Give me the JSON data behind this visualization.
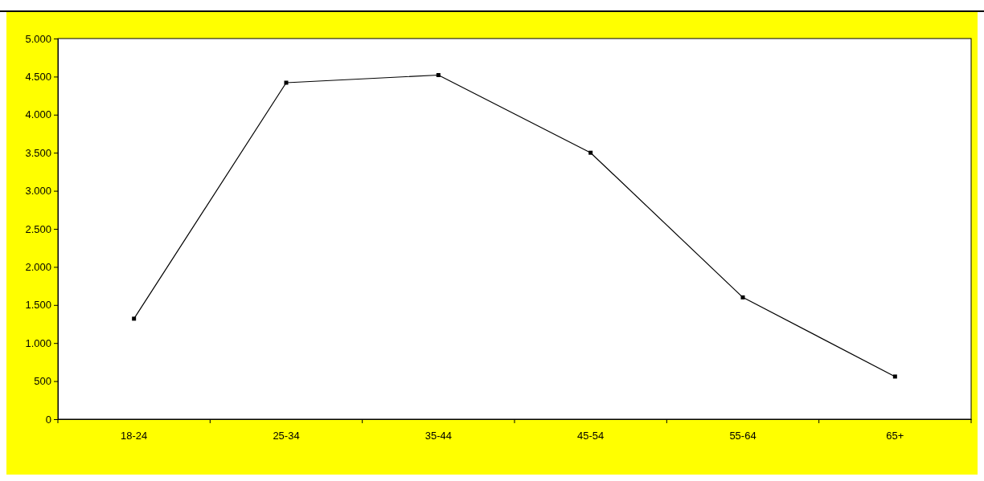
{
  "chart_data": {
    "type": "line",
    "categories": [
      "18-24",
      "25-34",
      "35-44",
      "45-54",
      "55-64",
      "65+"
    ],
    "series": [
      {
        "color": "#000000",
        "values": [
          1320,
          4420,
          4520,
          3500,
          1600,
          560
        ]
      }
    ],
    "ylim": [
      0,
      5000
    ],
    "yticks": [
      {
        "value": 0,
        "label": "0"
      },
      {
        "value": 500,
        "label": "500"
      },
      {
        "value": 1000,
        "label": "1.000"
      },
      {
        "value": 1500,
        "label": "1.500"
      },
      {
        "value": 2000,
        "label": "2.000"
      },
      {
        "value": 2500,
        "label": "2.500"
      },
      {
        "value": 3000,
        "label": "3.000"
      },
      {
        "value": 3500,
        "label": "3.500"
      },
      {
        "value": 4000,
        "label": "4.000"
      },
      {
        "value": 4500,
        "label": "4.500"
      },
      {
        "value": 5000,
        "label": "5.000"
      }
    ],
    "marker": "square",
    "line_style": "solid",
    "grid": false
  }
}
